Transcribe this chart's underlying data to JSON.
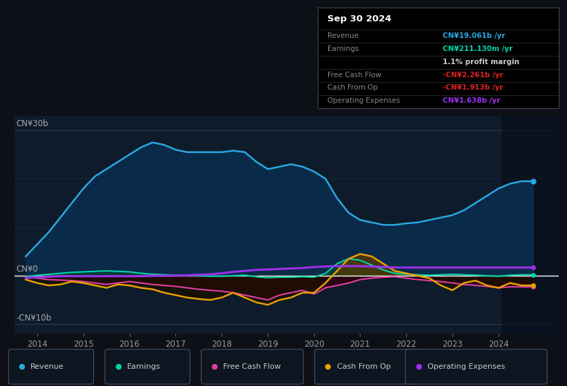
{
  "bg_color": "#0d1117",
  "plot_bg_color": "#0d1b2a",
  "title": "Sep 30 2024",
  "ylabel_top": "CN¥30b",
  "ylabel_zero": "CN¥0",
  "ylabel_bottom": "-CN¥10b",
  "xlim": [
    2013.5,
    2025.3
  ],
  "ylim": [
    -12,
    33
  ],
  "xticks": [
    2014,
    2015,
    2016,
    2017,
    2018,
    2019,
    2020,
    2021,
    2022,
    2023,
    2024
  ],
  "revenue_color": "#29a8e0",
  "earnings_color": "#00d4aa",
  "fcf_color": "#e040a0",
  "cashfromop_color": "#e8a000",
  "opex_color": "#9b30e8",
  "table_rows": [
    {
      "label": "Revenue",
      "value": "CN¥19.061b /yr",
      "label_color": "#888888",
      "value_color": "#29a8e0"
    },
    {
      "label": "Earnings",
      "value": "CN¥211.130m /yr",
      "label_color": "#888888",
      "value_color": "#00d4aa"
    },
    {
      "label": "",
      "value": "1.1% profit margin",
      "label_color": "#888888",
      "value_color": "#cccccc"
    },
    {
      "label": "Free Cash Flow",
      "value": "-CN¥2.261b /yr",
      "label_color": "#888888",
      "value_color": "#dd2222"
    },
    {
      "label": "Cash From Op",
      "value": "-CN¥1.913b /yr",
      "label_color": "#888888",
      "value_color": "#dd2222"
    },
    {
      "label": "Operating Expenses",
      "value": "CN¥1.638b /yr",
      "label_color": "#888888",
      "value_color": "#9b30e8"
    }
  ],
  "legend_items": [
    {
      "label": "Revenue",
      "color": "#29a8e0"
    },
    {
      "label": "Earnings",
      "color": "#00d4aa"
    },
    {
      "label": "Free Cash Flow",
      "color": "#e040a0"
    },
    {
      "label": "Cash From Op",
      "color": "#e8a000"
    },
    {
      "label": "Operating Expenses",
      "color": "#9b30e8"
    }
  ],
  "revenue_x": [
    2013.75,
    2014.0,
    2014.25,
    2014.5,
    2014.75,
    2015.0,
    2015.25,
    2015.5,
    2015.75,
    2016.0,
    2016.25,
    2016.5,
    2016.75,
    2017.0,
    2017.25,
    2017.5,
    2017.75,
    2018.0,
    2018.25,
    2018.5,
    2018.75,
    2019.0,
    2019.25,
    2019.5,
    2019.75,
    2020.0,
    2020.25,
    2020.5,
    2020.75,
    2021.0,
    2021.25,
    2021.5,
    2021.75,
    2022.0,
    2022.25,
    2022.5,
    2022.75,
    2023.0,
    2023.25,
    2023.5,
    2023.75,
    2024.0,
    2024.25,
    2024.5,
    2024.75
  ],
  "revenue_y": [
    4.0,
    6.5,
    9.0,
    12.0,
    15.0,
    18.0,
    20.5,
    22.0,
    23.5,
    25.0,
    26.5,
    27.5,
    27.0,
    26.0,
    25.5,
    25.5,
    25.5,
    25.5,
    25.8,
    25.5,
    23.5,
    22.0,
    22.5,
    23.0,
    22.5,
    21.5,
    20.0,
    16.0,
    13.0,
    11.5,
    11.0,
    10.5,
    10.5,
    10.8,
    11.0,
    11.5,
    12.0,
    12.5,
    13.5,
    15.0,
    16.5,
    18.0,
    19.0,
    19.5,
    19.5
  ],
  "earnings_x": [
    2013.75,
    2014.0,
    2014.25,
    2014.5,
    2014.75,
    2015.0,
    2015.25,
    2015.5,
    2015.75,
    2016.0,
    2016.25,
    2016.5,
    2016.75,
    2017.0,
    2017.25,
    2017.5,
    2017.75,
    2018.0,
    2018.25,
    2018.5,
    2018.75,
    2019.0,
    2019.25,
    2019.5,
    2019.75,
    2020.0,
    2020.25,
    2020.5,
    2020.75,
    2021.0,
    2021.25,
    2021.5,
    2021.75,
    2022.0,
    2022.25,
    2022.5,
    2022.75,
    2023.0,
    2023.25,
    2023.5,
    2023.75,
    2024.0,
    2024.25,
    2024.5,
    2024.75
  ],
  "earnings_y": [
    -0.2,
    0.1,
    0.3,
    0.5,
    0.7,
    0.8,
    0.9,
    1.0,
    0.9,
    0.8,
    0.5,
    0.3,
    0.2,
    0.1,
    0.1,
    0.0,
    -0.1,
    -0.1,
    0.0,
    0.1,
    -0.2,
    -0.4,
    -0.3,
    -0.3,
    -0.2,
    -0.3,
    0.5,
    2.5,
    3.5,
    3.2,
    2.2,
    1.2,
    0.5,
    0.3,
    0.2,
    0.1,
    0.2,
    0.3,
    0.2,
    0.1,
    0.0,
    -0.1,
    0.1,
    0.2,
    0.2
  ],
  "fcf_x": [
    2013.75,
    2014.0,
    2014.25,
    2014.5,
    2014.75,
    2015.0,
    2015.25,
    2015.5,
    2015.75,
    2016.0,
    2016.25,
    2016.5,
    2016.75,
    2017.0,
    2017.25,
    2017.5,
    2017.75,
    2018.0,
    2018.25,
    2018.5,
    2018.75,
    2019.0,
    2019.25,
    2019.5,
    2019.75,
    2020.0,
    2020.25,
    2020.5,
    2020.75,
    2021.0,
    2021.25,
    2021.5,
    2021.75,
    2022.0,
    2022.25,
    2022.5,
    2022.75,
    2023.0,
    2023.25,
    2023.5,
    2023.75,
    2024.0,
    2024.25,
    2024.5,
    2024.75
  ],
  "fcf_y": [
    -0.3,
    -0.5,
    -0.8,
    -0.9,
    -1.0,
    -1.2,
    -1.5,
    -1.8,
    -1.5,
    -1.2,
    -1.5,
    -1.8,
    -2.0,
    -2.2,
    -2.5,
    -2.8,
    -3.0,
    -3.2,
    -3.5,
    -4.0,
    -4.5,
    -5.0,
    -4.0,
    -3.5,
    -3.0,
    -3.8,
    -2.5,
    -2.0,
    -1.5,
    -0.8,
    -0.5,
    -0.3,
    -0.2,
    -0.5,
    -0.8,
    -1.0,
    -1.2,
    -1.5,
    -1.8,
    -2.0,
    -2.2,
    -2.5,
    -2.3,
    -2.3,
    -2.3
  ],
  "cashop_x": [
    2013.75,
    2014.0,
    2014.25,
    2014.5,
    2014.75,
    2015.0,
    2015.25,
    2015.5,
    2015.75,
    2016.0,
    2016.25,
    2016.5,
    2016.75,
    2017.0,
    2017.25,
    2017.5,
    2017.75,
    2018.0,
    2018.25,
    2018.5,
    2018.75,
    2019.0,
    2019.25,
    2019.5,
    2019.75,
    2020.0,
    2020.25,
    2020.5,
    2020.75,
    2021.0,
    2021.25,
    2021.5,
    2021.75,
    2022.0,
    2022.25,
    2022.5,
    2022.75,
    2023.0,
    2023.25,
    2023.5,
    2023.75,
    2024.0,
    2024.25,
    2024.5,
    2024.75
  ],
  "cashop_y": [
    -0.8,
    -1.5,
    -2.0,
    -1.8,
    -1.2,
    -1.5,
    -2.0,
    -2.5,
    -1.8,
    -2.0,
    -2.5,
    -2.8,
    -3.5,
    -4.0,
    -4.5,
    -4.8,
    -5.0,
    -4.5,
    -3.5,
    -4.5,
    -5.5,
    -6.0,
    -5.0,
    -4.5,
    -3.5,
    -3.5,
    -1.5,
    1.0,
    3.5,
    4.5,
    4.0,
    2.5,
    1.0,
    0.5,
    0.0,
    -0.5,
    -2.0,
    -3.0,
    -1.5,
    -1.0,
    -2.0,
    -2.5,
    -1.5,
    -2.0,
    -2.0
  ],
  "opex_x": [
    2013.75,
    2014.0,
    2014.25,
    2014.5,
    2014.75,
    2015.0,
    2015.25,
    2015.5,
    2015.75,
    2016.0,
    2016.25,
    2016.5,
    2016.75,
    2017.0,
    2017.25,
    2017.5,
    2017.75,
    2018.0,
    2018.25,
    2018.5,
    2018.75,
    2019.0,
    2019.25,
    2019.5,
    2019.75,
    2020.0,
    2020.25,
    2020.5,
    2020.75,
    2021.0,
    2021.25,
    2021.5,
    2021.75,
    2022.0,
    2022.25,
    2022.5,
    2022.75,
    2023.0,
    2023.25,
    2023.5,
    2023.75,
    2024.0,
    2024.25,
    2024.5,
    2024.75
  ],
  "opex_y": [
    -0.5,
    -0.3,
    -0.2,
    -0.1,
    -0.1,
    -0.1,
    -0.1,
    -0.1,
    -0.1,
    -0.1,
    -0.1,
    0.0,
    0.0,
    0.0,
    0.1,
    0.2,
    0.3,
    0.5,
    0.8,
    1.0,
    1.2,
    1.3,
    1.4,
    1.5,
    1.6,
    1.8,
    1.9,
    2.0,
    2.0,
    2.0,
    1.9,
    1.8,
    1.7,
    1.7,
    1.7,
    1.7,
    1.7,
    1.7,
    1.7,
    1.7,
    1.7,
    1.7,
    1.7,
    1.7,
    1.7
  ]
}
